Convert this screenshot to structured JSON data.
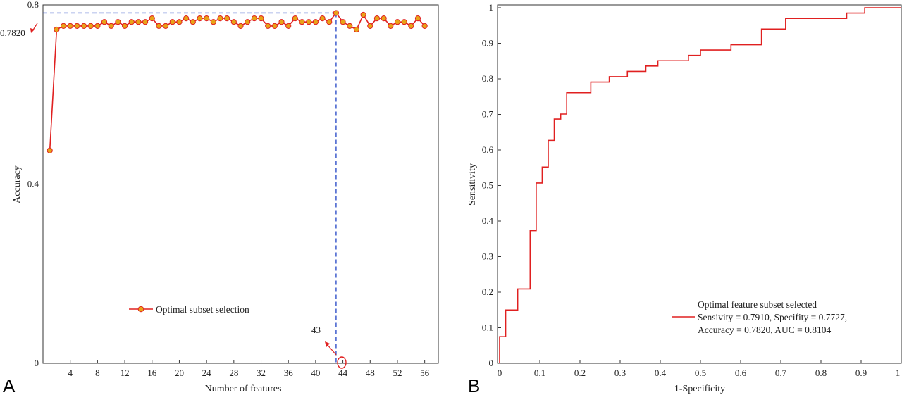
{
  "panels": {
    "a": "A",
    "b": "B"
  },
  "chart_data": [
    {
      "type": "line",
      "xlabel": "Number of features",
      "ylabel": "Accuracy",
      "xlim": [
        0,
        58
      ],
      "ylim": [
        0,
        0.8
      ],
      "xticks": [
        "4",
        "8",
        "12",
        "16",
        "20",
        "24",
        "28",
        "32",
        "36",
        "40",
        "44",
        "48",
        "52",
        "56"
      ],
      "xtick_values": [
        4,
        8,
        12,
        16,
        20,
        24,
        28,
        32,
        36,
        40,
        44,
        48,
        52,
        56
      ],
      "yticks": [
        "0",
        "0.4",
        "0.8"
      ],
      "ytick_values": [
        0,
        0.4,
        0.8
      ],
      "grid": false,
      "legend_position": "lower-center",
      "series": [
        {
          "name": "Optimal subset selection",
          "color": "#e02020",
          "marker_fill": "#e8a317",
          "x": [
            1,
            2,
            3,
            4,
            5,
            6,
            7,
            8,
            9,
            10,
            11,
            12,
            13,
            14,
            15,
            16,
            17,
            18,
            19,
            20,
            21,
            22,
            23,
            24,
            25,
            26,
            27,
            28,
            29,
            30,
            31,
            32,
            33,
            34,
            35,
            36,
            37,
            38,
            39,
            40,
            41,
            42,
            43,
            44,
            45,
            46,
            47,
            48,
            49,
            50,
            51,
            52,
            53,
            54,
            55,
            56
          ],
          "values": [
            0.475,
            0.745,
            0.753,
            0.753,
            0.753,
            0.753,
            0.753,
            0.753,
            0.762,
            0.753,
            0.762,
            0.753,
            0.762,
            0.762,
            0.762,
            0.77,
            0.753,
            0.753,
            0.762,
            0.762,
            0.77,
            0.762,
            0.77,
            0.77,
            0.762,
            0.77,
            0.77,
            0.762,
            0.753,
            0.762,
            0.77,
            0.77,
            0.753,
            0.753,
            0.762,
            0.753,
            0.77,
            0.762,
            0.762,
            0.762,
            0.77,
            0.762,
            0.782,
            0.762,
            0.753,
            0.745,
            0.778,
            0.753,
            0.77,
            0.77,
            0.753,
            0.762,
            0.762,
            0.753,
            0.77,
            0.753
          ]
        }
      ],
      "annotations": {
        "best_accuracy": "0.7820",
        "best_accuracy_value": 0.782,
        "best_features": "43",
        "best_features_value": 43
      }
    },
    {
      "type": "line",
      "xlabel": "1-Specificity",
      "ylabel": "Sensitivity",
      "xlim": [
        0,
        1
      ],
      "ylim": [
        0,
        1
      ],
      "xticks": [
        "0",
        "0.1",
        "0.2",
        "0.3",
        "0.4",
        "0.5",
        "0.6",
        "0.7",
        "0.8",
        "0.9",
        "1"
      ],
      "xtick_values": [
        0,
        0.1,
        0.2,
        0.3,
        0.4,
        0.5,
        0.6,
        0.7,
        0.8,
        0.9,
        1
      ],
      "yticks": [
        "0",
        "0.1",
        "0.2",
        "0.3",
        "0.4",
        "0.5",
        "0.6",
        "0.7",
        "0.8",
        "0.9",
        "1"
      ],
      "ytick_values": [
        0,
        0.1,
        0.2,
        0.3,
        0.4,
        0.5,
        0.6,
        0.7,
        0.8,
        0.9,
        1
      ],
      "grid": false,
      "legend_position": "lower-right",
      "legend_lines": [
        "Optimal feature subset selected",
        "Sensivity = 0.7910, Specifity = 0.7727,",
        "Accuracy = 0.7820, AUC = 0.8104"
      ],
      "series": [
        {
          "name": "Optimal feature subset selected",
          "color": "#e02020",
          "x": [
            0,
            0,
            0.015,
            0.015,
            0.045,
            0.045,
            0.076,
            0.076,
            0.091,
            0.091,
            0.106,
            0.106,
            0.121,
            0.121,
            0.136,
            0.136,
            0.152,
            0.152,
            0.167,
            0.167,
            0.227,
            0.227,
            0.273,
            0.273,
            0.318,
            0.318,
            0.364,
            0.364,
            0.394,
            0.394,
            0.47,
            0.47,
            0.5,
            0.5,
            0.576,
            0.576,
            0.652,
            0.652,
            0.712,
            0.712,
            0.864,
            0.864,
            0.909,
            0.909,
            1.0
          ],
          "y": [
            0,
            0.075,
            0.075,
            0.15,
            0.15,
            0.209,
            0.209,
            0.373,
            0.373,
            0.507,
            0.507,
            0.552,
            0.552,
            0.627,
            0.627,
            0.687,
            0.687,
            0.701,
            0.701,
            0.761,
            0.761,
            0.791,
            0.791,
            0.806,
            0.806,
            0.821,
            0.821,
            0.836,
            0.836,
            0.851,
            0.851,
            0.866,
            0.866,
            0.881,
            0.881,
            0.896,
            0.896,
            0.94,
            0.94,
            0.97,
            0.97,
            0.985,
            0.985,
            1.0,
            1.0
          ]
        }
      ]
    }
  ]
}
